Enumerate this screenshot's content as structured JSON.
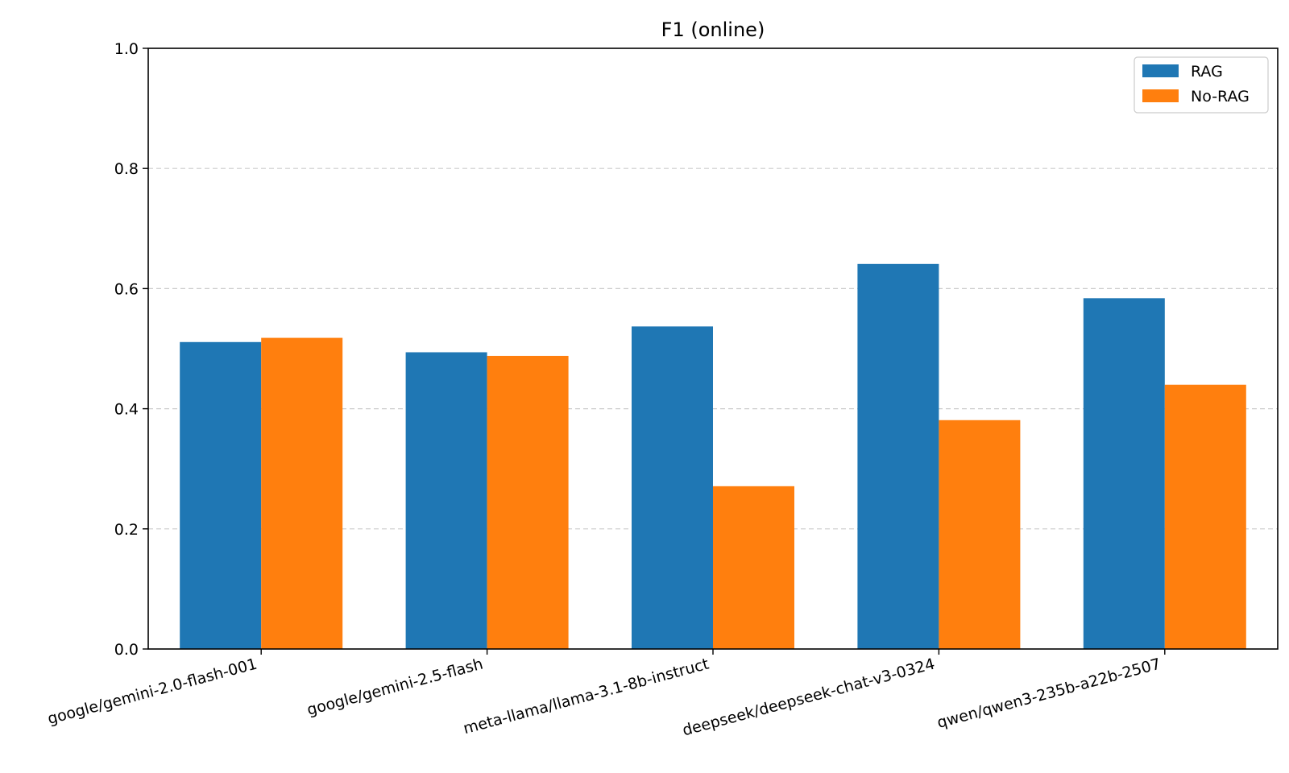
{
  "chart_data": {
    "type": "bar",
    "title": "F1 (online)",
    "xlabel": "",
    "ylabel": "",
    "categories": [
      "google/gemini-2.0-flash-001",
      "google/gemini-2.5-flash",
      "meta-llama/llama-3.1-8b-instruct",
      "deepseek/deepseek-chat-v3-0324",
      "qwen/qwen3-235b-a22b-2507"
    ],
    "series": [
      {
        "name": "RAG",
        "color": "#1f77b4",
        "values": [
          0.511,
          0.494,
          0.537,
          0.641,
          0.584
        ]
      },
      {
        "name": "No-RAG",
        "color": "#ff7f0e",
        "values": [
          0.518,
          0.488,
          0.271,
          0.381,
          0.44
        ]
      }
    ],
    "ylim": [
      0,
      1.0
    ],
    "yticks": [
      "0.0",
      "0.2",
      "0.4",
      "0.6",
      "0.8",
      "1.0"
    ],
    "grid": "y-dashed",
    "legend_position": "top-right",
    "xtick_rotation": "15 degrees"
  }
}
